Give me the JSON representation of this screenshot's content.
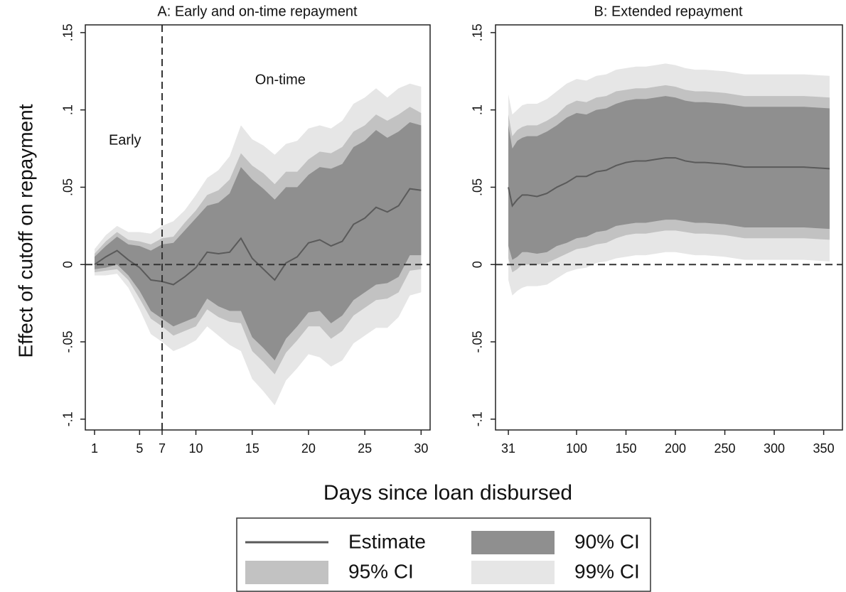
{
  "xlabel": "Days since loan disbursed",
  "ylabel": "Effect of cutoff on repayment",
  "chart_data": [
    {
      "type": "band",
      "title": "A: Early and on-time repayment",
      "x": [
        1,
        2,
        3,
        4,
        5,
        6,
        7,
        8,
        9,
        10,
        11,
        12,
        13,
        14,
        15,
        16,
        17,
        18,
        19,
        20,
        21,
        22,
        23,
        24,
        25,
        26,
        27,
        28,
        29,
        30
      ],
      "xlim": [
        0.18,
        30.8
      ],
      "xticks": [
        1,
        5,
        7,
        10,
        15,
        20,
        25,
        30
      ],
      "ylim": [
        -0.107,
        0.155
      ],
      "yticks": [
        {
          "value": -0.1,
          "label": "-.1"
        },
        {
          "value": -0.05,
          "label": "-.05"
        },
        0,
        {
          "value": 0.05,
          "label": ".05"
        },
        {
          "value": 0.1,
          "label": ".1"
        },
        {
          "value": 0.15,
          "label": ".15"
        }
      ],
      "hline": 0,
      "vline": 7,
      "annotations": [
        "Early",
        "On-time"
      ],
      "bands": [
        {
          "name": "99% CI",
          "color": "#e6e6e6",
          "upper": [
            0.01,
            0.019,
            0.025,
            0.021,
            0.021,
            0.02,
            0.025,
            0.028,
            0.035,
            0.045,
            0.056,
            0.061,
            0.07,
            0.09,
            0.081,
            0.077,
            0.071,
            0.078,
            0.08,
            0.088,
            0.09,
            0.088,
            0.093,
            0.104,
            0.108,
            0.114,
            0.108,
            0.114,
            0.117,
            0.115
          ],
          "lower": [
            -0.007,
            -0.007,
            -0.006,
            -0.015,
            -0.029,
            -0.045,
            -0.05,
            -0.056,
            -0.053,
            -0.049,
            -0.04,
            -0.046,
            -0.052,
            -0.056,
            -0.074,
            -0.082,
            -0.091,
            -0.075,
            -0.067,
            -0.058,
            -0.06,
            -0.066,
            -0.062,
            -0.051,
            -0.046,
            -0.041,
            -0.041,
            -0.034,
            -0.02,
            -0.018
          ]
        },
        {
          "name": "95% CI",
          "color": "#c2c2c2",
          "upper": [
            0.007,
            0.015,
            0.021,
            0.016,
            0.015,
            0.013,
            0.017,
            0.018,
            0.027,
            0.035,
            0.045,
            0.048,
            0.055,
            0.072,
            0.064,
            0.059,
            0.052,
            0.06,
            0.06,
            0.068,
            0.073,
            0.072,
            0.076,
            0.086,
            0.09,
            0.097,
            0.093,
            0.097,
            0.102,
            0.098
          ],
          "lower": [
            -0.005,
            -0.004,
            -0.003,
            -0.01,
            -0.022,
            -0.035,
            -0.04,
            -0.046,
            -0.043,
            -0.04,
            -0.029,
            -0.034,
            -0.037,
            -0.038,
            -0.056,
            -0.063,
            -0.071,
            -0.057,
            -0.049,
            -0.04,
            -0.04,
            -0.048,
            -0.043,
            -0.033,
            -0.028,
            -0.023,
            -0.022,
            -0.018,
            -0.004,
            -0.003
          ]
        },
        {
          "name": "90% CI",
          "color": "#8f8f8f",
          "upper": [
            0.005,
            0.012,
            0.018,
            0.013,
            0.012,
            0.009,
            0.013,
            0.014,
            0.022,
            0.03,
            0.038,
            0.04,
            0.046,
            0.063,
            0.055,
            0.049,
            0.042,
            0.05,
            0.05,
            0.058,
            0.063,
            0.062,
            0.065,
            0.076,
            0.08,
            0.087,
            0.082,
            0.086,
            0.092,
            0.09
          ],
          "lower": [
            -0.003,
            -0.002,
            0,
            -0.007,
            -0.017,
            -0.03,
            -0.035,
            -0.04,
            -0.037,
            -0.034,
            -0.022,
            -0.027,
            -0.03,
            -0.03,
            -0.047,
            -0.054,
            -0.062,
            -0.048,
            -0.04,
            -0.031,
            -0.03,
            -0.038,
            -0.033,
            -0.023,
            -0.018,
            -0.013,
            -0.012,
            -0.008,
            0.006,
            0.006
          ]
        }
      ],
      "series": [
        {
          "name": "Estimate",
          "color": "#5a5a5a",
          "values": [
            0,
            0.005,
            0.009,
            0.003,
            -0.002,
            -0.01,
            -0.011,
            -0.013,
            -0.008,
            -0.002,
            0.008,
            0.007,
            0.008,
            0.017,
            0.004,
            -0.003,
            -0.01,
            0.001,
            0.005,
            0.014,
            0.016,
            0.012,
            0.015,
            0.026,
            0.03,
            0.037,
            0.034,
            0.038,
            0.049,
            0.048
          ]
        }
      ]
    },
    {
      "type": "band",
      "title": "B: Extended repayment",
      "x": [
        31,
        35,
        40,
        45,
        50,
        60,
        70,
        80,
        90,
        100,
        110,
        120,
        130,
        140,
        150,
        160,
        170,
        180,
        190,
        200,
        210,
        220,
        230,
        250,
        270,
        300,
        330,
        356
      ],
      "xlim": [
        18,
        369
      ],
      "xticks": [
        31,
        100,
        150,
        200,
        250,
        300,
        350
      ],
      "ylim": [
        -0.107,
        0.155
      ],
      "yticks": [
        {
          "value": -0.1,
          "label": "-.1"
        },
        {
          "value": -0.05,
          "label": "-.05"
        },
        0,
        {
          "value": 0.05,
          "label": ".05"
        },
        {
          "value": 0.1,
          "label": ".1"
        },
        {
          "value": 0.15,
          "label": ".15"
        }
      ],
      "hline": 0,
      "bands": [
        {
          "color": "#e6e6e6",
          "upper": [
            0.11,
            0.097,
            0.1,
            0.103,
            0.104,
            0.104,
            0.107,
            0.112,
            0.117,
            0.12,
            0.119,
            0.122,
            0.123,
            0.126,
            0.127,
            0.128,
            0.128,
            0.129,
            0.13,
            0.129,
            0.127,
            0.126,
            0.126,
            0.125,
            0.123,
            0.123,
            0.123,
            0.122
          ],
          "lower": [
            -0.01,
            -0.02,
            -0.017,
            -0.015,
            -0.014,
            -0.014,
            -0.013,
            -0.009,
            -0.005,
            -0.003,
            -0.002,
            0.001,
            0.002,
            0.004,
            0.005,
            0.006,
            0.006,
            0.007,
            0.008,
            0.008,
            0.007,
            0.006,
            0.006,
            0.005,
            0.003,
            0.003,
            0.003,
            0.002
          ]
        },
        {
          "color": "#c2c2c2",
          "upper": [
            0.097,
            0.083,
            0.087,
            0.089,
            0.09,
            0.09,
            0.093,
            0.097,
            0.103,
            0.106,
            0.105,
            0.108,
            0.109,
            0.112,
            0.113,
            0.114,
            0.114,
            0.115,
            0.116,
            0.115,
            0.113,
            0.112,
            0.112,
            0.111,
            0.109,
            0.109,
            0.109,
            0.108
          ],
          "lower": [
            0.004,
            -0.005,
            -0.003,
            0,
            0,
            0,
            0.001,
            0.004,
            0.007,
            0.01,
            0.011,
            0.013,
            0.014,
            0.017,
            0.019,
            0.02,
            0.02,
            0.021,
            0.022,
            0.022,
            0.021,
            0.02,
            0.02,
            0.019,
            0.017,
            0.017,
            0.017,
            0.016
          ]
        },
        {
          "color": "#8f8f8f",
          "upper": [
            0.09,
            0.075,
            0.08,
            0.082,
            0.083,
            0.083,
            0.086,
            0.09,
            0.095,
            0.098,
            0.097,
            0.1,
            0.101,
            0.104,
            0.106,
            0.107,
            0.107,
            0.108,
            0.109,
            0.108,
            0.106,
            0.105,
            0.105,
            0.104,
            0.102,
            0.102,
            0.102,
            0.101
          ],
          "lower": [
            0.012,
            0.003,
            0.005,
            0.008,
            0.008,
            0.007,
            0.008,
            0.012,
            0.014,
            0.017,
            0.018,
            0.021,
            0.022,
            0.025,
            0.026,
            0.027,
            0.027,
            0.028,
            0.029,
            0.029,
            0.028,
            0.027,
            0.027,
            0.026,
            0.024,
            0.024,
            0.024,
            0.023
          ]
        }
      ],
      "series": [
        {
          "color": "#5a5a5a",
          "values": [
            0.05,
            0.038,
            0.042,
            0.045,
            0.045,
            0.044,
            0.046,
            0.05,
            0.053,
            0.057,
            0.057,
            0.06,
            0.061,
            0.064,
            0.066,
            0.067,
            0.067,
            0.068,
            0.069,
            0.069,
            0.067,
            0.066,
            0.066,
            0.065,
            0.063,
            0.063,
            0.063,
            0.062
          ]
        }
      ]
    }
  ]
}
